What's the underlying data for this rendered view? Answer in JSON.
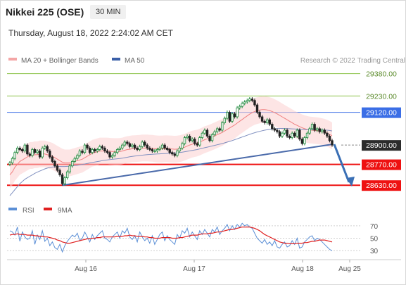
{
  "header": {
    "title": "Nikkei 225 (OSE)",
    "timeframe": "30 MIN"
  },
  "datetime": "Thursday, August 18, 2022 2:24:02 AM CET",
  "copyright": "Research © 2022 Trading Central",
  "chart_data": [
    {
      "type": "candlestick",
      "legend": [
        {
          "label": "MA 20 + Bollinger Bands",
          "color": "#f4a6a6"
        },
        {
          "label": "MA 50",
          "color": "#3a5fa8"
        }
      ],
      "ylim": [
        28560,
        29440
      ],
      "levels": [
        {
          "label": "29380.00",
          "value": 29380,
          "color": "#8bc34a",
          "kind": "resistance"
        },
        {
          "label": "29230.00",
          "value": 29230,
          "color": "#8bc34a",
          "kind": "resistance"
        },
        {
          "label": "29120.00",
          "value": 29120,
          "color": "#3b6ee6",
          "kind": "pivot"
        },
        {
          "label": "28900.00",
          "value": 28900,
          "color": "#333333",
          "kind": "last"
        },
        {
          "label": "28770.00",
          "value": 28770,
          "color": "#ee1111",
          "kind": "support"
        },
        {
          "label": "28630.00",
          "value": 28630,
          "color": "#ee1111",
          "kind": "support"
        }
      ],
      "x_ticks": [
        "Aug 16",
        "Aug 17",
        "Aug 18",
        "Aug 25"
      ],
      "close_series": [
        28780,
        28810,
        28850,
        28880,
        28870,
        28860,
        28900,
        28840,
        28830,
        28870,
        28850,
        28860,
        28820,
        28880,
        28890,
        28860,
        28820,
        28790,
        28760,
        28730,
        28700,
        28640,
        28680,
        28720,
        28760,
        28790,
        28810,
        28830,
        28860,
        28850,
        28900,
        28880,
        28850,
        28870,
        28860,
        28870,
        28890,
        28880,
        28860,
        28850,
        28820,
        28830,
        28850,
        28870,
        28880,
        28900,
        28920,
        28910,
        28890,
        28900,
        28880,
        28870,
        28890,
        28920,
        28900,
        28880,
        28870,
        28860,
        28860,
        28870,
        28880,
        28900,
        28880,
        28870,
        28850,
        28840,
        28830,
        28860,
        28880,
        28910,
        28950,
        28960,
        28930,
        28940,
        28910,
        28900,
        28950,
        28980,
        29000,
        28960,
        28930,
        28970,
        28990,
        29010,
        29000,
        29050,
        29080,
        29120,
        29060,
        29110,
        29090,
        29150,
        29160,
        29180,
        29190,
        29200,
        29210,
        29200,
        29170,
        29120,
        29090,
        29060,
        29050,
        29070,
        29040,
        29010,
        29000,
        28990,
        28960,
        28980,
        29000,
        28960,
        28950,
        28980,
        28960,
        29000,
        28940,
        28910,
        28950,
        28980,
        29010,
        29040,
        29000,
        29010,
        28990,
        29000,
        28980,
        28960,
        28930,
        28900
      ],
      "ma20_series": [
        28700,
        28720,
        28750,
        28770,
        28790,
        28800,
        28810,
        28820,
        28830,
        28830,
        28835,
        28835,
        28840,
        28840,
        28840,
        28835,
        28830,
        28825,
        28815,
        28805,
        28795,
        28785,
        28780,
        28780,
        28780,
        28785,
        28790,
        28795,
        28800,
        28805,
        28815,
        28825,
        28835,
        28845,
        28850,
        28855,
        28860,
        28860,
        28860,
        28860,
        28858,
        28857,
        28856,
        28856,
        28857,
        28860,
        28865,
        28870,
        28872,
        28875,
        28876,
        28877,
        28878,
        28880,
        28880,
        28880,
        28879,
        28878,
        28876,
        28874,
        28873,
        28874,
        28875,
        28875,
        28874,
        28873,
        28872,
        28873,
        28876,
        28880,
        28886,
        28893,
        28900,
        28906,
        28910,
        28914,
        28920,
        28928,
        28936,
        28942,
        28948,
        28955,
        28962,
        28970,
        28977,
        28985,
        28995,
        29005,
        29015,
        29025,
        29035,
        29048,
        29060,
        29072,
        29084,
        29096,
        29108,
        29118,
        29126,
        29132,
        29136,
        29138,
        29138,
        29136,
        29132,
        29126,
        29118,
        29110,
        29100,
        29090,
        29080,
        29070,
        29060,
        29050,
        29040,
        29032,
        29024,
        29016,
        29010,
        29005,
        29002,
        29000,
        28998,
        28996,
        28994,
        28990,
        28986,
        28980,
        28972,
        28962
      ],
      "ma50_series": [
        28560,
        28580,
        28600,
        28620,
        28640,
        28655,
        28670,
        28680,
        28690,
        28700,
        28710,
        28718,
        28725,
        28732,
        28740,
        28745,
        28750,
        28752,
        28754,
        28755,
        28756,
        28756,
        28756,
        28757,
        28758,
        28760,
        28762,
        28764,
        28767,
        28770,
        28773,
        28776,
        28780,
        28783,
        28786,
        28789,
        28792,
        28795,
        28798,
        28800,
        28802,
        28804,
        28806,
        28808,
        28810,
        28812,
        28815,
        28818,
        28821,
        28824,
        28826,
        28828,
        28830,
        28832,
        28834,
        28836,
        28837,
        28838,
        28839,
        28840,
        28841,
        28842,
        28843,
        28844,
        28845,
        28846,
        28847,
        28848,
        28850,
        28852,
        28855,
        28858,
        28861,
        28864,
        28867,
        28870,
        28874,
        28878,
        28882,
        28886,
        28890,
        28894,
        28898,
        28902,
        28906,
        28910,
        28915,
        28920,
        28925,
        28930,
        28936,
        28942,
        28948,
        28954,
        28960,
        28966,
        28972,
        28978,
        28983,
        28988,
        28992,
        28996,
        29000,
        29003,
        29006,
        29008,
        29010,
        29011,
        29012,
        29012,
        29012,
        29011,
        29010,
        29009,
        29008,
        29007,
        29006,
        29005,
        29004,
        29004,
        29004,
        29004,
        29004,
        29004,
        29003,
        29002,
        29001,
        29000,
        28998,
        28995
      ],
      "band_width": 90
    },
    {
      "type": "line",
      "legend": [
        {
          "label": "RSI",
          "color": "#5b8fd6"
        },
        {
          "label": "9MA",
          "color": "#e02020"
        }
      ],
      "ylim": [
        20,
        80
      ],
      "y_ticks": [
        "70",
        "50",
        "30"
      ],
      "rsi_series": [
        62,
        60,
        55,
        68,
        45,
        60,
        52,
        48,
        50,
        62,
        40,
        55,
        48,
        62,
        45,
        50,
        38,
        44,
        35,
        32,
        40,
        28,
        38,
        45,
        50,
        55,
        52,
        58,
        46,
        50,
        60,
        52,
        44,
        56,
        48,
        54,
        58,
        62,
        50,
        48,
        44,
        52,
        56,
        60,
        50,
        62,
        58,
        66,
        52,
        48,
        54,
        44,
        60,
        52,
        46,
        50,
        42,
        54,
        40,
        48,
        56,
        60,
        46,
        54,
        48,
        44,
        40,
        56,
        50,
        62,
        58,
        66,
        52,
        60,
        54,
        48,
        62,
        56,
        64,
        58,
        52,
        64,
        60,
        68,
        56,
        62,
        66,
        72,
        62,
        70,
        64,
        72,
        68,
        74,
        70,
        72,
        68,
        66,
        58,
        50,
        46,
        42,
        48,
        40,
        44,
        38,
        46,
        36,
        34,
        40,
        44,
        36,
        38,
        46,
        40,
        50,
        34,
        36,
        44,
        48,
        52,
        54,
        46,
        50,
        48,
        44,
        40,
        36,
        32,
        30
      ],
      "ma_series": [
        55,
        56,
        56,
        57,
        56,
        56,
        56,
        55,
        55,
        55,
        54,
        54,
        53,
        53,
        52,
        52,
        51,
        50,
        49,
        47,
        46,
        44,
        43,
        42,
        42,
        43,
        44,
        45,
        46,
        47,
        48,
        49,
        49,
        50,
        50,
        51,
        51,
        52,
        52,
        52,
        52,
        52,
        52,
        53,
        53,
        53,
        54,
        54,
        55,
        54,
        54,
        53,
        53,
        53,
        52,
        52,
        51,
        51,
        50,
        50,
        50,
        51,
        51,
        51,
        51,
        50,
        50,
        50,
        51,
        51,
        52,
        53,
        54,
        55,
        55,
        55,
        56,
        57,
        57,
        57,
        58,
        58,
        59,
        60,
        60,
        61,
        62,
        63,
        64,
        64,
        65,
        66,
        67,
        68,
        68,
        68,
        68,
        67,
        66,
        64,
        62,
        59,
        56,
        54,
        52,
        50,
        48,
        46,
        44,
        43,
        42,
        42,
        41,
        41,
        41,
        42,
        42,
        42,
        43,
        43,
        44,
        45,
        45,
        46,
        47,
        47,
        47,
        46,
        45,
        44
      ]
    }
  ]
}
